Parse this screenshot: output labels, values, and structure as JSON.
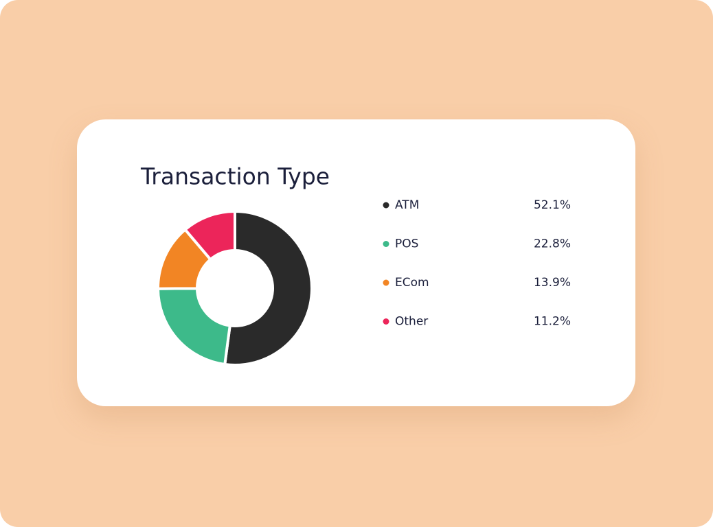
{
  "chart_data": {
    "type": "pie",
    "title": "Transaction Type",
    "categories": [
      "ATM",
      "POS",
      "ECom",
      "Other"
    ],
    "values": [
      52.1,
      22.8,
      13.9,
      11.2
    ],
    "value_labels": [
      "52.1%",
      "22.8%",
      "13.9%",
      "11.2%"
    ],
    "colors": [
      "#2a2a2a",
      "#3dba8a",
      "#f28524",
      "#ec255a"
    ],
    "donut": true
  }
}
